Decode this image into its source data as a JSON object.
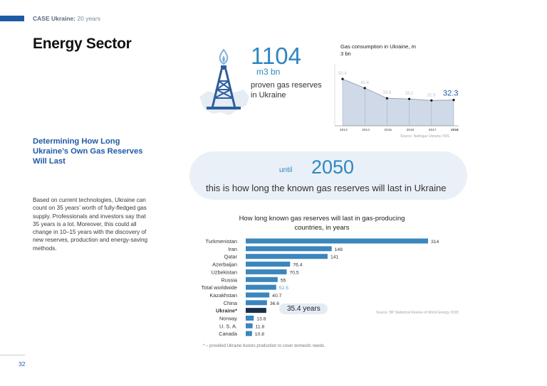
{
  "header": {
    "brand": "CASE Ukraine:",
    "tagline": "20 years"
  },
  "page_title": "Energy Sector",
  "section_heading": "Determining How Long Ukraine’s Own Gas Reserves Will Last",
  "body_text": "Based on current technologies, Ukraine can count on 35 years’ worth of fully-fledged gas supply. Professionals and investors say that 35 years is a lot. Moreover, this could all change in 10–15 years with the discovery of new reserves, production and energy-saving methods.",
  "page_number": "32",
  "reserves": {
    "value": "1104",
    "unit": "m3 bn",
    "description": "proven gas reserves in Ukraine"
  },
  "banner": {
    "prefix": "until",
    "year": "2050",
    "text": "this is how long the known gas reserves will last in Ukraine"
  },
  "ukraine_callout": "35.4 years",
  "footnote": "* – provided Ukraine boosts production to cover domestic needs.",
  "colors": {
    "accent_blue": "#2e86c1",
    "dark_blue": "#1f5aa6",
    "bar_blue": "#3b86bc",
    "ukraine_bar": "#1a2e4a",
    "area_fill": "#cfd9e8"
  },
  "chart_data": [
    {
      "type": "area",
      "title": "Gas consumption in Ukraine, m 3 bn",
      "x": [
        "2013",
        "2014",
        "2015",
        "2016",
        "2017",
        "2018"
      ],
      "values": [
        50.4,
        42.6,
        33.8,
        33.2,
        31.9,
        32.3
      ],
      "value_labels": [
        "50.4",
        "42.6",
        "33.8",
        "33.2",
        "31.9",
        "32.3"
      ],
      "highlight_last": true,
      "source": "Source: Naftogaz Ukrainy, KIIS"
    },
    {
      "type": "bar",
      "orientation": "horizontal",
      "title": "How long known gas reserves will last in gas-producing countries, in years",
      "categories": [
        "Turkmenistan",
        "Iran",
        "Qatar",
        "Azerbaijan",
        "Uzbekistan",
        "Russia",
        "Total worldwide",
        "Kazakhstan",
        "China",
        "Ukraine*",
        "Norway",
        "U. S. A.",
        "Canada"
      ],
      "values": [
        314,
        148,
        141,
        76.4,
        70.5,
        55,
        52.5,
        40.7,
        36.6,
        35.4,
        13.8,
        11.8,
        10.8
      ],
      "value_labels": [
        "314",
        "148",
        "141",
        "76,4",
        "70,5",
        "55",
        "52.5",
        "40.7",
        "36.6",
        "",
        "13.8",
        "11.8",
        "10.8"
      ],
      "highlight": [
        "Ukraine*"
      ],
      "source": "Source: BP Statistical Review of World Energy 2018"
    }
  ]
}
